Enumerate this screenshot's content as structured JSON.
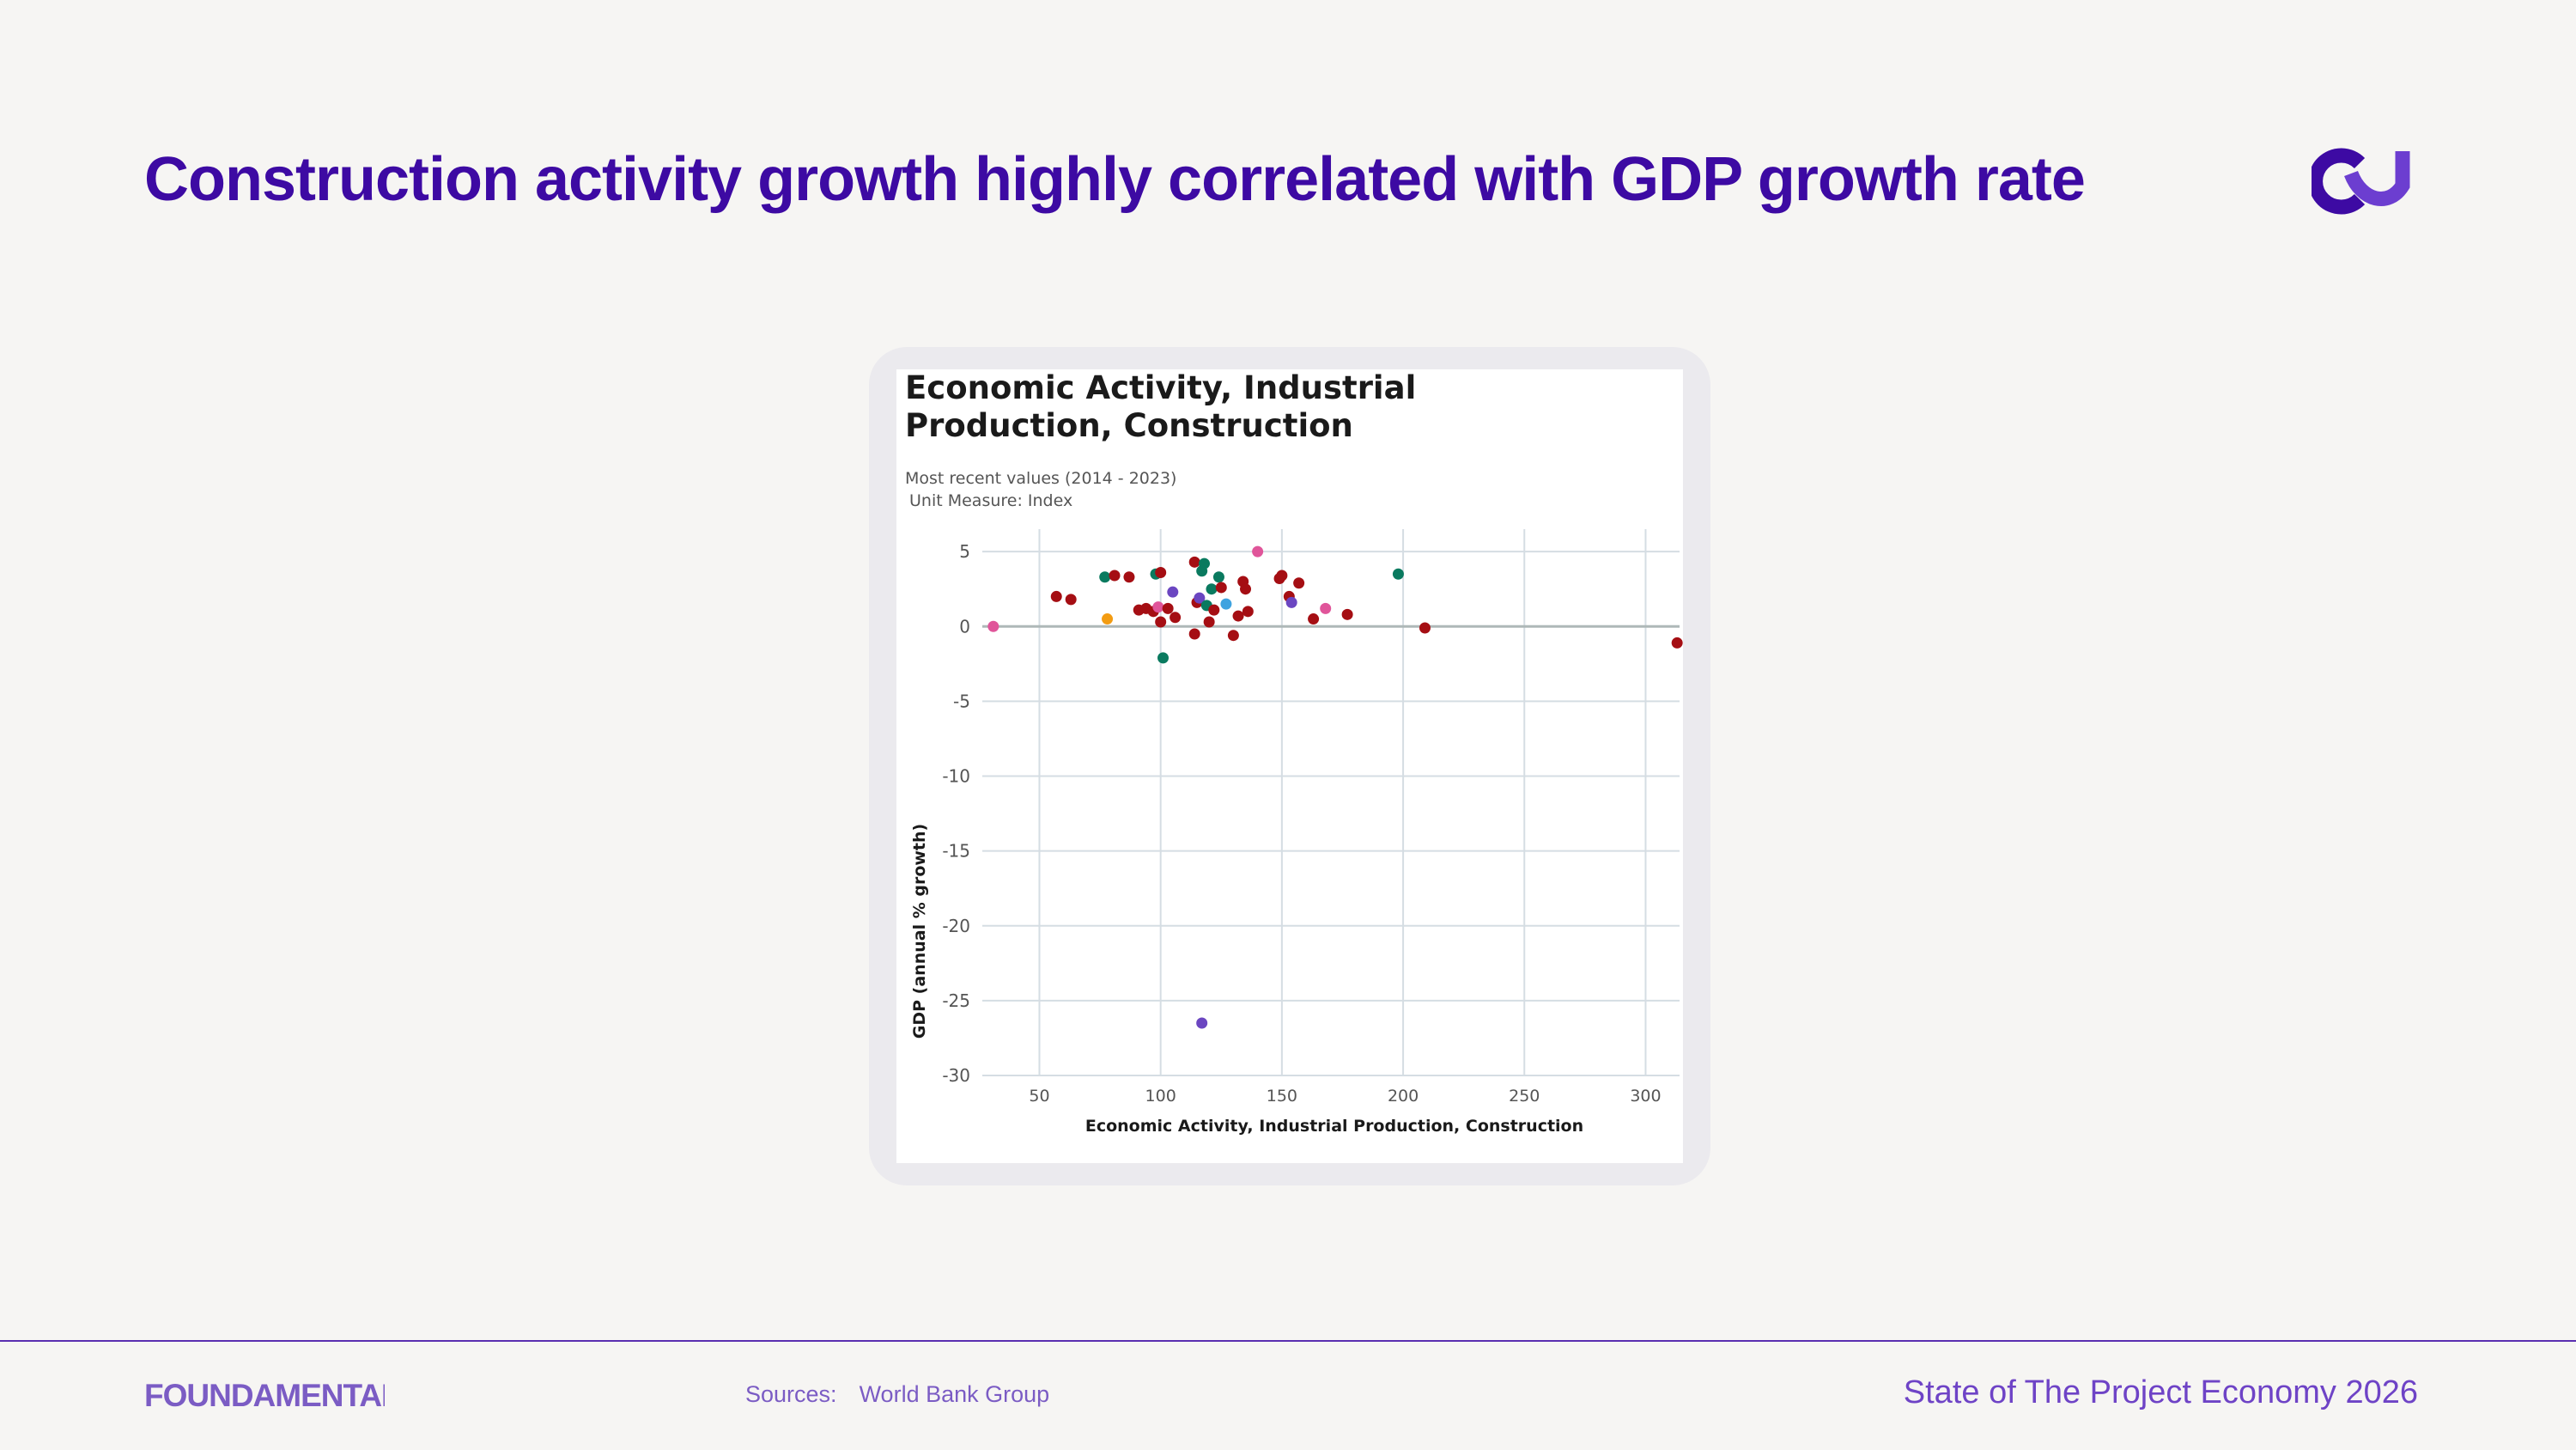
{
  "slide": {
    "title": "Construction activity growth highly correlated with GDP growth rate"
  },
  "brand": {
    "logo_icon": "cu-monogram-icon",
    "accent": "#3d0aa3",
    "wordmark": "FOUNDAMENTAL"
  },
  "footer": {
    "sources_label": "Sources:",
    "sources_value": "World Bank Group",
    "report_name": "State of The Project Economy 2026"
  },
  "chart_data": {
    "type": "scatter",
    "title": "Economic Activity, Industrial Production, Construction",
    "subtitle": "Most recent values (2014 - 2023)",
    "unit_note": "Unit Measure: Index",
    "xlabel": "Economic Activity, Industrial Production, Construction",
    "ylabel": "GDP (annual % growth)",
    "xlim": [
      30,
      314
    ],
    "ylim": [
      -30,
      6.5
    ],
    "xticks": [
      "50",
      "100",
      "150",
      "200",
      "250",
      "300"
    ],
    "xtick_values": [
      50,
      100,
      150,
      200,
      250,
      300
    ],
    "yticks": [
      "5",
      "0",
      "-5",
      "-10",
      "-15",
      "-20",
      "-25",
      "-30"
    ],
    "ytick_values": [
      5,
      0,
      -5,
      -10,
      -15,
      -20,
      -25,
      -30
    ],
    "grid": true,
    "reference_line_y": 0,
    "colors": {
      "red": "#a50e13",
      "teal": "#0a7a5f",
      "purple": "#6b46c1",
      "pink": "#e0559a",
      "orange": "#f39c12",
      "blue": "#3fa3e0"
    },
    "points": [
      {
        "x": 31,
        "y": 0.0,
        "c": "pink"
      },
      {
        "x": 57,
        "y": 2.0,
        "c": "red"
      },
      {
        "x": 63,
        "y": 1.8,
        "c": "red"
      },
      {
        "x": 77,
        "y": 3.3,
        "c": "teal"
      },
      {
        "x": 78,
        "y": 0.5,
        "c": "orange"
      },
      {
        "x": 81,
        "y": 3.4,
        "c": "red"
      },
      {
        "x": 87,
        "y": 3.3,
        "c": "red"
      },
      {
        "x": 91,
        "y": 1.1,
        "c": "red"
      },
      {
        "x": 94,
        "y": 1.2,
        "c": "red"
      },
      {
        "x": 97,
        "y": 1.0,
        "c": "red"
      },
      {
        "x": 98,
        "y": 3.5,
        "c": "teal"
      },
      {
        "x": 99,
        "y": 1.3,
        "c": "pink"
      },
      {
        "x": 100,
        "y": 3.6,
        "c": "red"
      },
      {
        "x": 100,
        "y": 0.3,
        "c": "red"
      },
      {
        "x": 101,
        "y": -2.1,
        "c": "teal"
      },
      {
        "x": 103,
        "y": 1.2,
        "c": "red"
      },
      {
        "x": 105,
        "y": 2.3,
        "c": "purple"
      },
      {
        "x": 106,
        "y": 0.6,
        "c": "red"
      },
      {
        "x": 114,
        "y": 4.3,
        "c": "red"
      },
      {
        "x": 114,
        "y": -0.5,
        "c": "red"
      },
      {
        "x": 115,
        "y": 1.6,
        "c": "red"
      },
      {
        "x": 116,
        "y": 1.9,
        "c": "purple"
      },
      {
        "x": 117,
        "y": 3.7,
        "c": "teal"
      },
      {
        "x": 117,
        "y": -26.5,
        "c": "purple"
      },
      {
        "x": 118,
        "y": 4.2,
        "c": "teal"
      },
      {
        "x": 119,
        "y": 1.4,
        "c": "teal"
      },
      {
        "x": 120,
        "y": 0.3,
        "c": "red"
      },
      {
        "x": 121,
        "y": 2.5,
        "c": "teal"
      },
      {
        "x": 122,
        "y": 1.1,
        "c": "red"
      },
      {
        "x": 124,
        "y": 3.3,
        "c": "teal"
      },
      {
        "x": 125,
        "y": 2.6,
        "c": "red"
      },
      {
        "x": 127,
        "y": 1.5,
        "c": "blue"
      },
      {
        "x": 130,
        "y": -0.6,
        "c": "red"
      },
      {
        "x": 132,
        "y": 0.7,
        "c": "red"
      },
      {
        "x": 134,
        "y": 3.0,
        "c": "red"
      },
      {
        "x": 135,
        "y": 2.5,
        "c": "red"
      },
      {
        "x": 136,
        "y": 1.0,
        "c": "red"
      },
      {
        "x": 140,
        "y": 5.0,
        "c": "pink"
      },
      {
        "x": 149,
        "y": 3.2,
        "c": "red"
      },
      {
        "x": 150,
        "y": 3.4,
        "c": "red"
      },
      {
        "x": 153,
        "y": 2.0,
        "c": "red"
      },
      {
        "x": 154,
        "y": 1.6,
        "c": "purple"
      },
      {
        "x": 157,
        "y": 2.9,
        "c": "red"
      },
      {
        "x": 163,
        "y": 0.5,
        "c": "red"
      },
      {
        "x": 168,
        "y": 1.2,
        "c": "pink"
      },
      {
        "x": 177,
        "y": 0.8,
        "c": "red"
      },
      {
        "x": 198,
        "y": 3.5,
        "c": "teal"
      },
      {
        "x": 209,
        "y": -0.1,
        "c": "red"
      },
      {
        "x": 313,
        "y": -1.1,
        "c": "red"
      }
    ]
  }
}
